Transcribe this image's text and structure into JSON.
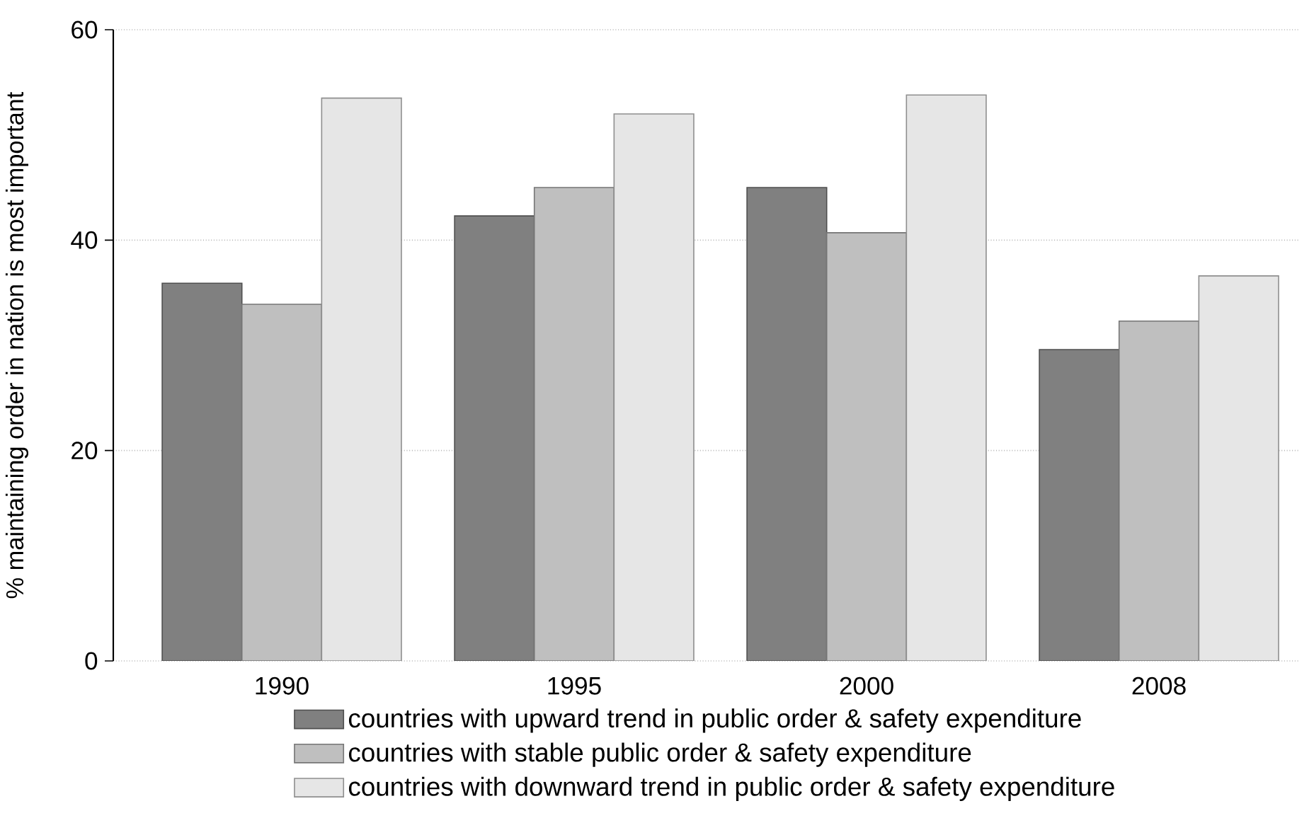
{
  "chart_data": {
    "type": "bar",
    "categories": [
      "1990",
      "1995",
      "2000",
      "2008"
    ],
    "series": [
      {
        "name": "countries with upward trend in public order & safety expenditure",
        "color": "#808080",
        "values": [
          35.9,
          42.3,
          45.0,
          29.6
        ]
      },
      {
        "name": "countries with stable public order & safety expenditure",
        "color": "#bfbfbf",
        "values": [
          33.9,
          45.0,
          40.7,
          32.3
        ]
      },
      {
        "name": "countries with downward trend in public order & safety expenditure",
        "color": "#e6e6e6",
        "values": [
          53.5,
          52.0,
          53.8,
          36.6
        ]
      }
    ],
    "ylabel": "% maintaining order in nation is most important",
    "ylim": [
      0,
      60
    ],
    "yticks": [
      0,
      20,
      40,
      60
    ],
    "grid": "y",
    "legend": "bottom"
  }
}
